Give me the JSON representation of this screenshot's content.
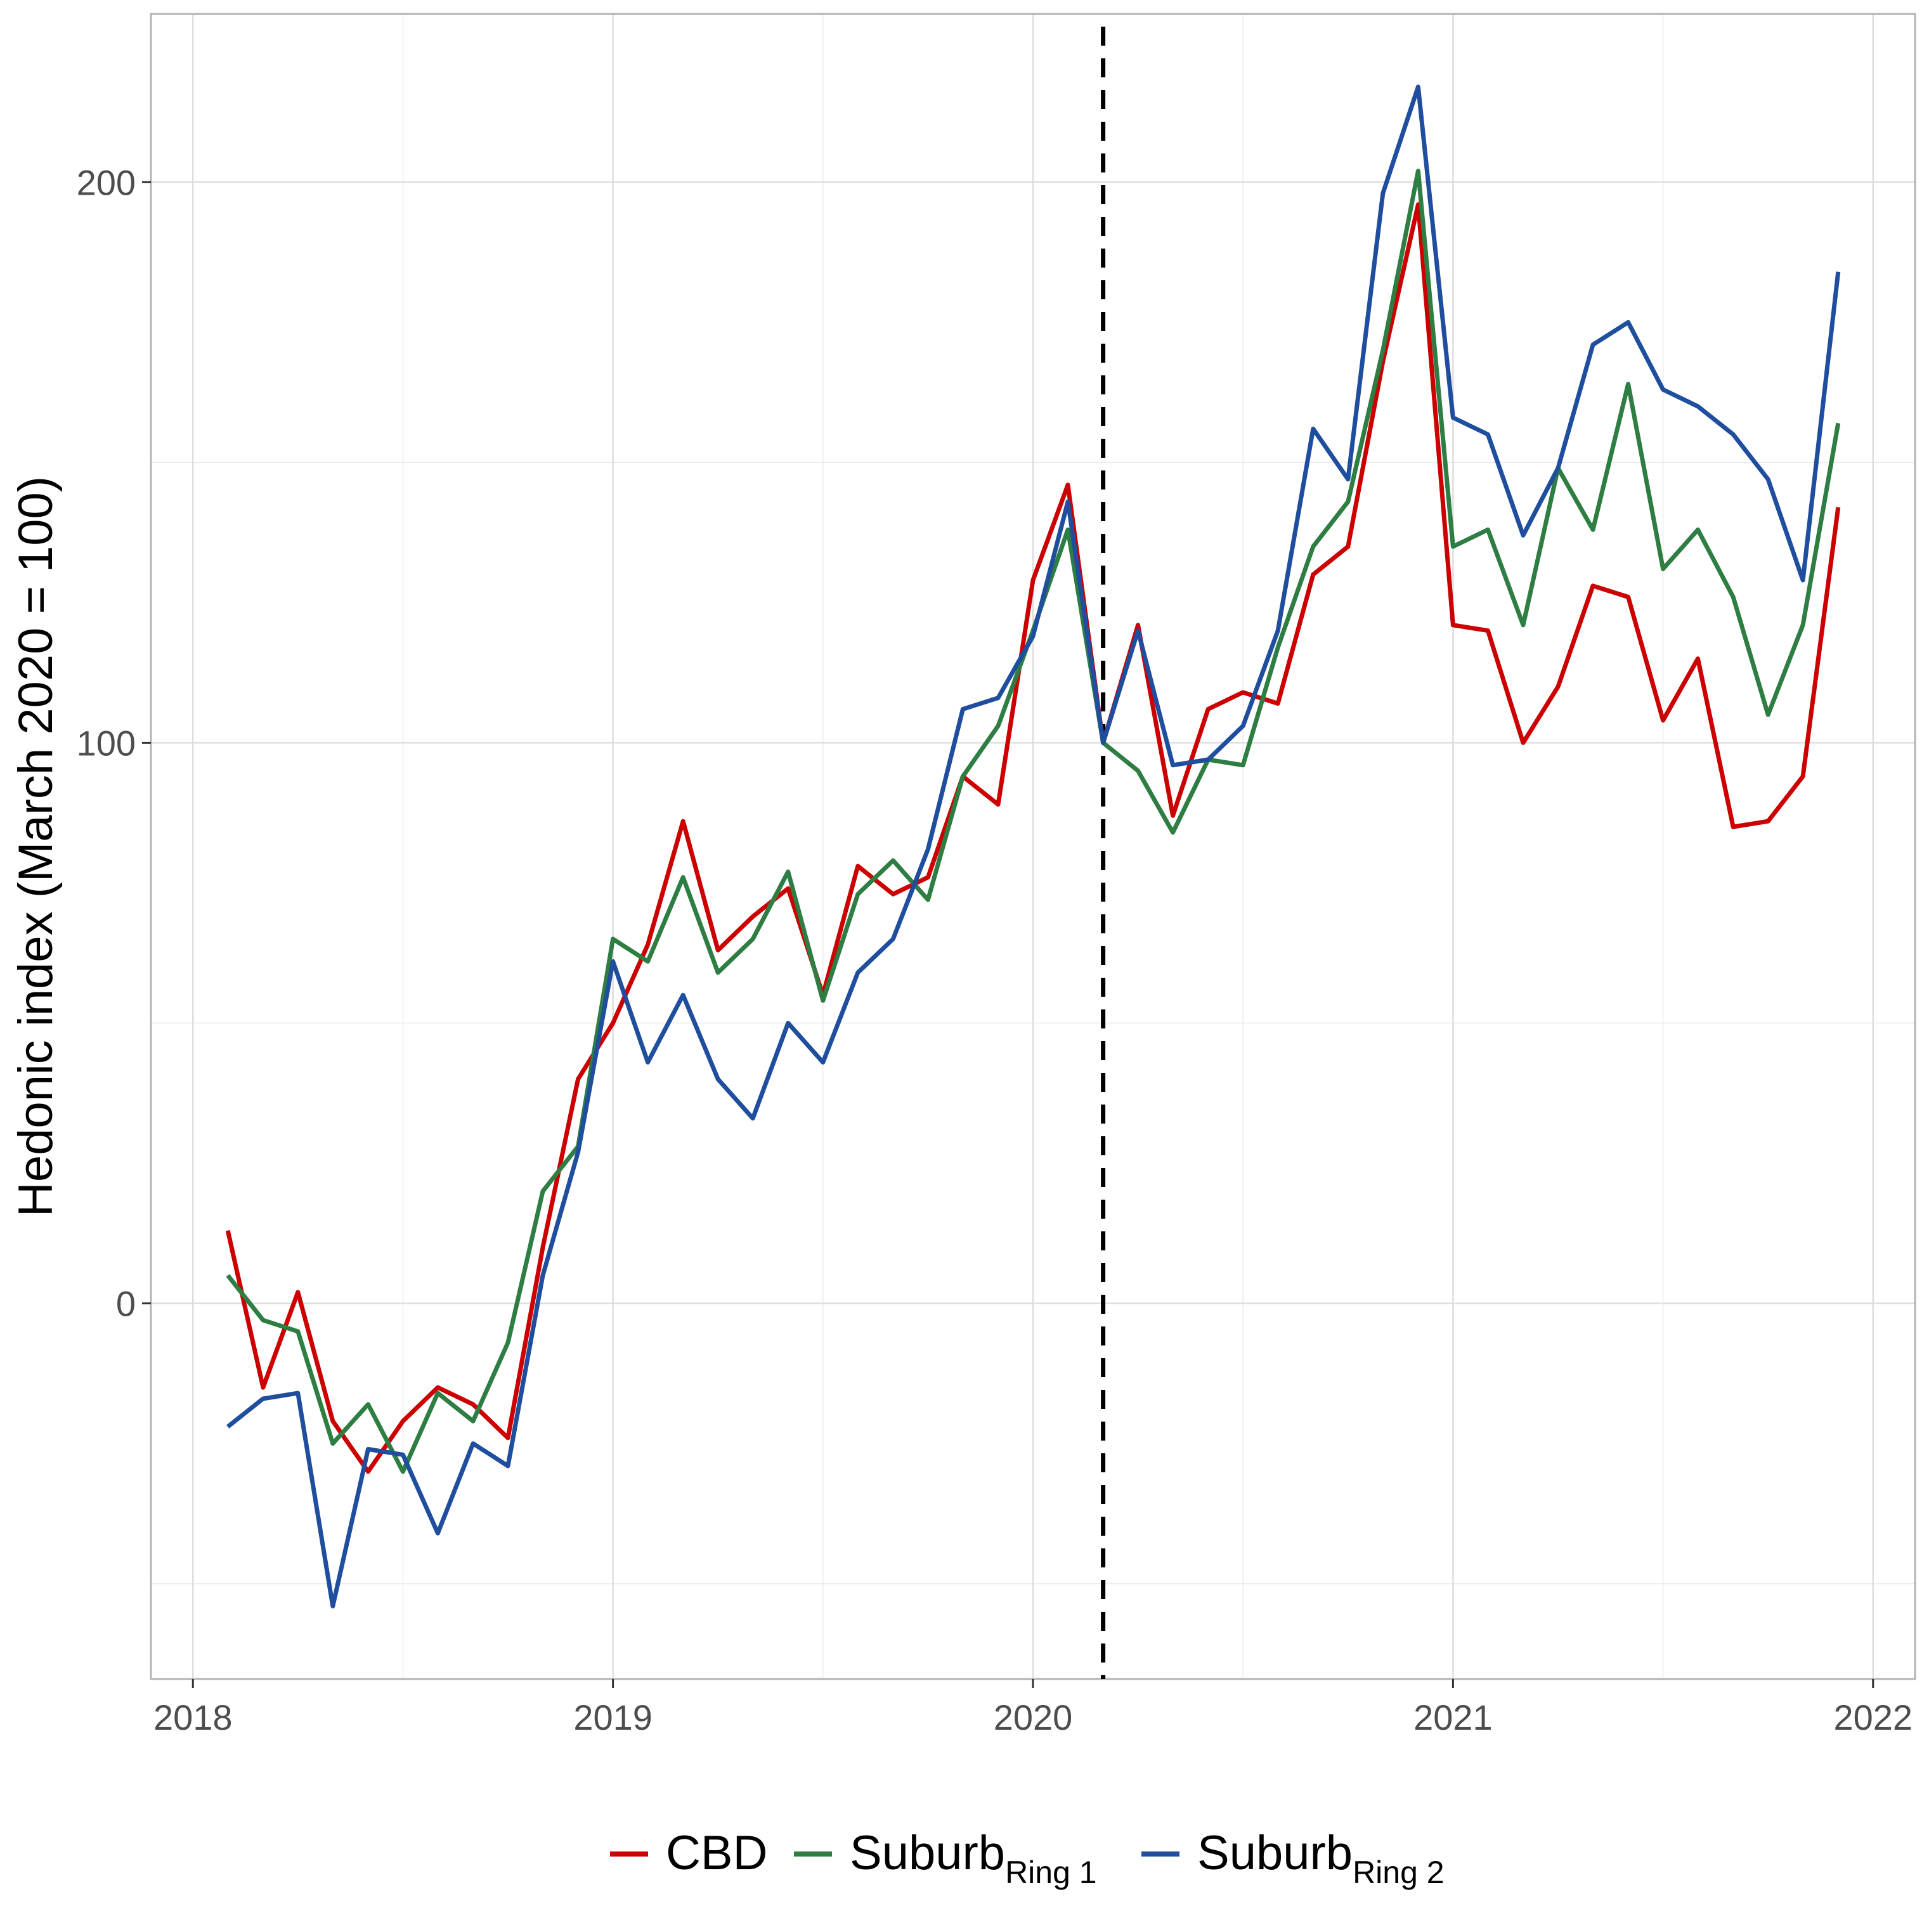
{
  "chart_data": {
    "type": "line",
    "title": "",
    "xlabel": "",
    "ylabel": "Hedonic index (March 2020 = 100)",
    "xlim": [
      2017.9,
      2022.1
    ],
    "ylim": [
      -67,
      230
    ],
    "x_ticks": [
      {
        "value": 2018,
        "label": "2018"
      },
      {
        "value": 2019,
        "label": "2019"
      },
      {
        "value": 2020,
        "label": "2020"
      },
      {
        "value": 2021,
        "label": "2021"
      },
      {
        "value": 2022,
        "label": "2022"
      }
    ],
    "y_ticks": [
      {
        "value": 0,
        "label": "0"
      },
      {
        "value": 100,
        "label": "100"
      },
      {
        "value": 200,
        "label": "200"
      }
    ],
    "y_minor_grid": [
      -50,
      50,
      150
    ],
    "x_minor_grid": [
      2018.5,
      2019.5,
      2020.5,
      2021.5
    ],
    "grid": true,
    "legend_position": "bottom",
    "reference_line": {
      "x": 2020.167,
      "style": "dashed",
      "color": "#000000"
    },
    "x": [
      2018.083,
      2018.167,
      2018.25,
      2018.333,
      2018.417,
      2018.5,
      2018.583,
      2018.667,
      2018.75,
      2018.833,
      2018.917,
      2019.0,
      2019.083,
      2019.167,
      2019.25,
      2019.333,
      2019.417,
      2019.5,
      2019.583,
      2019.667,
      2019.75,
      2019.833,
      2019.917,
      2020.0,
      2020.083,
      2020.167,
      2020.25,
      2020.333,
      2020.417,
      2020.5,
      2020.583,
      2020.667,
      2020.75,
      2020.833,
      2020.917,
      2021.0,
      2021.083,
      2021.167,
      2021.25,
      2021.333,
      2021.417,
      2021.5,
      2021.583,
      2021.667,
      2021.75,
      2021.833,
      2021.917
    ],
    "series": [
      {
        "name": "CBD",
        "color": "#cc0000",
        "values": [
          13,
          -15,
          2,
          -21,
          -30,
          -21,
          -15,
          -18,
          -24,
          10,
          40,
          50,
          64,
          86,
          63,
          69,
          74,
          55,
          78,
          73,
          76,
          94,
          89,
          129,
          146,
          100,
          121,
          87,
          106,
          109,
          107,
          130,
          135,
          168,
          196,
          121,
          120,
          100,
          110,
          128,
          126,
          104,
          115,
          85,
          86,
          94,
          142
        ]
      },
      {
        "name": "Suburb",
        "sub": "Ring 1",
        "color": "#2e7d43",
        "values": [
          5,
          -3,
          -5,
          -25,
          -18,
          -30,
          -16,
          -21,
          -7,
          20,
          28,
          65,
          61,
          76,
          59,
          65,
          77,
          54,
          73,
          79,
          72,
          94,
          103,
          120,
          138,
          100,
          95,
          84,
          97,
          96,
          117,
          135,
          143,
          170,
          202,
          135,
          138,
          121,
          149,
          138,
          164,
          131,
          138,
          126,
          105,
          121,
          157
        ]
      },
      {
        "name": "Suburb",
        "sub": "Ring 2",
        "color": "#1f4e9e",
        "values": [
          -22,
          -17,
          -16,
          -54,
          -26,
          -27,
          -41,
          -25,
          -29,
          5,
          27,
          61,
          43,
          55,
          40,
          33,
          50,
          43,
          59,
          65,
          81,
          106,
          108,
          119,
          143,
          100,
          120,
          96,
          97,
          103,
          120,
          156,
          147,
          198,
          217,
          158,
          155,
          137,
          149,
          171,
          175,
          163,
          160,
          155,
          147,
          129,
          184
        ]
      }
    ]
  }
}
